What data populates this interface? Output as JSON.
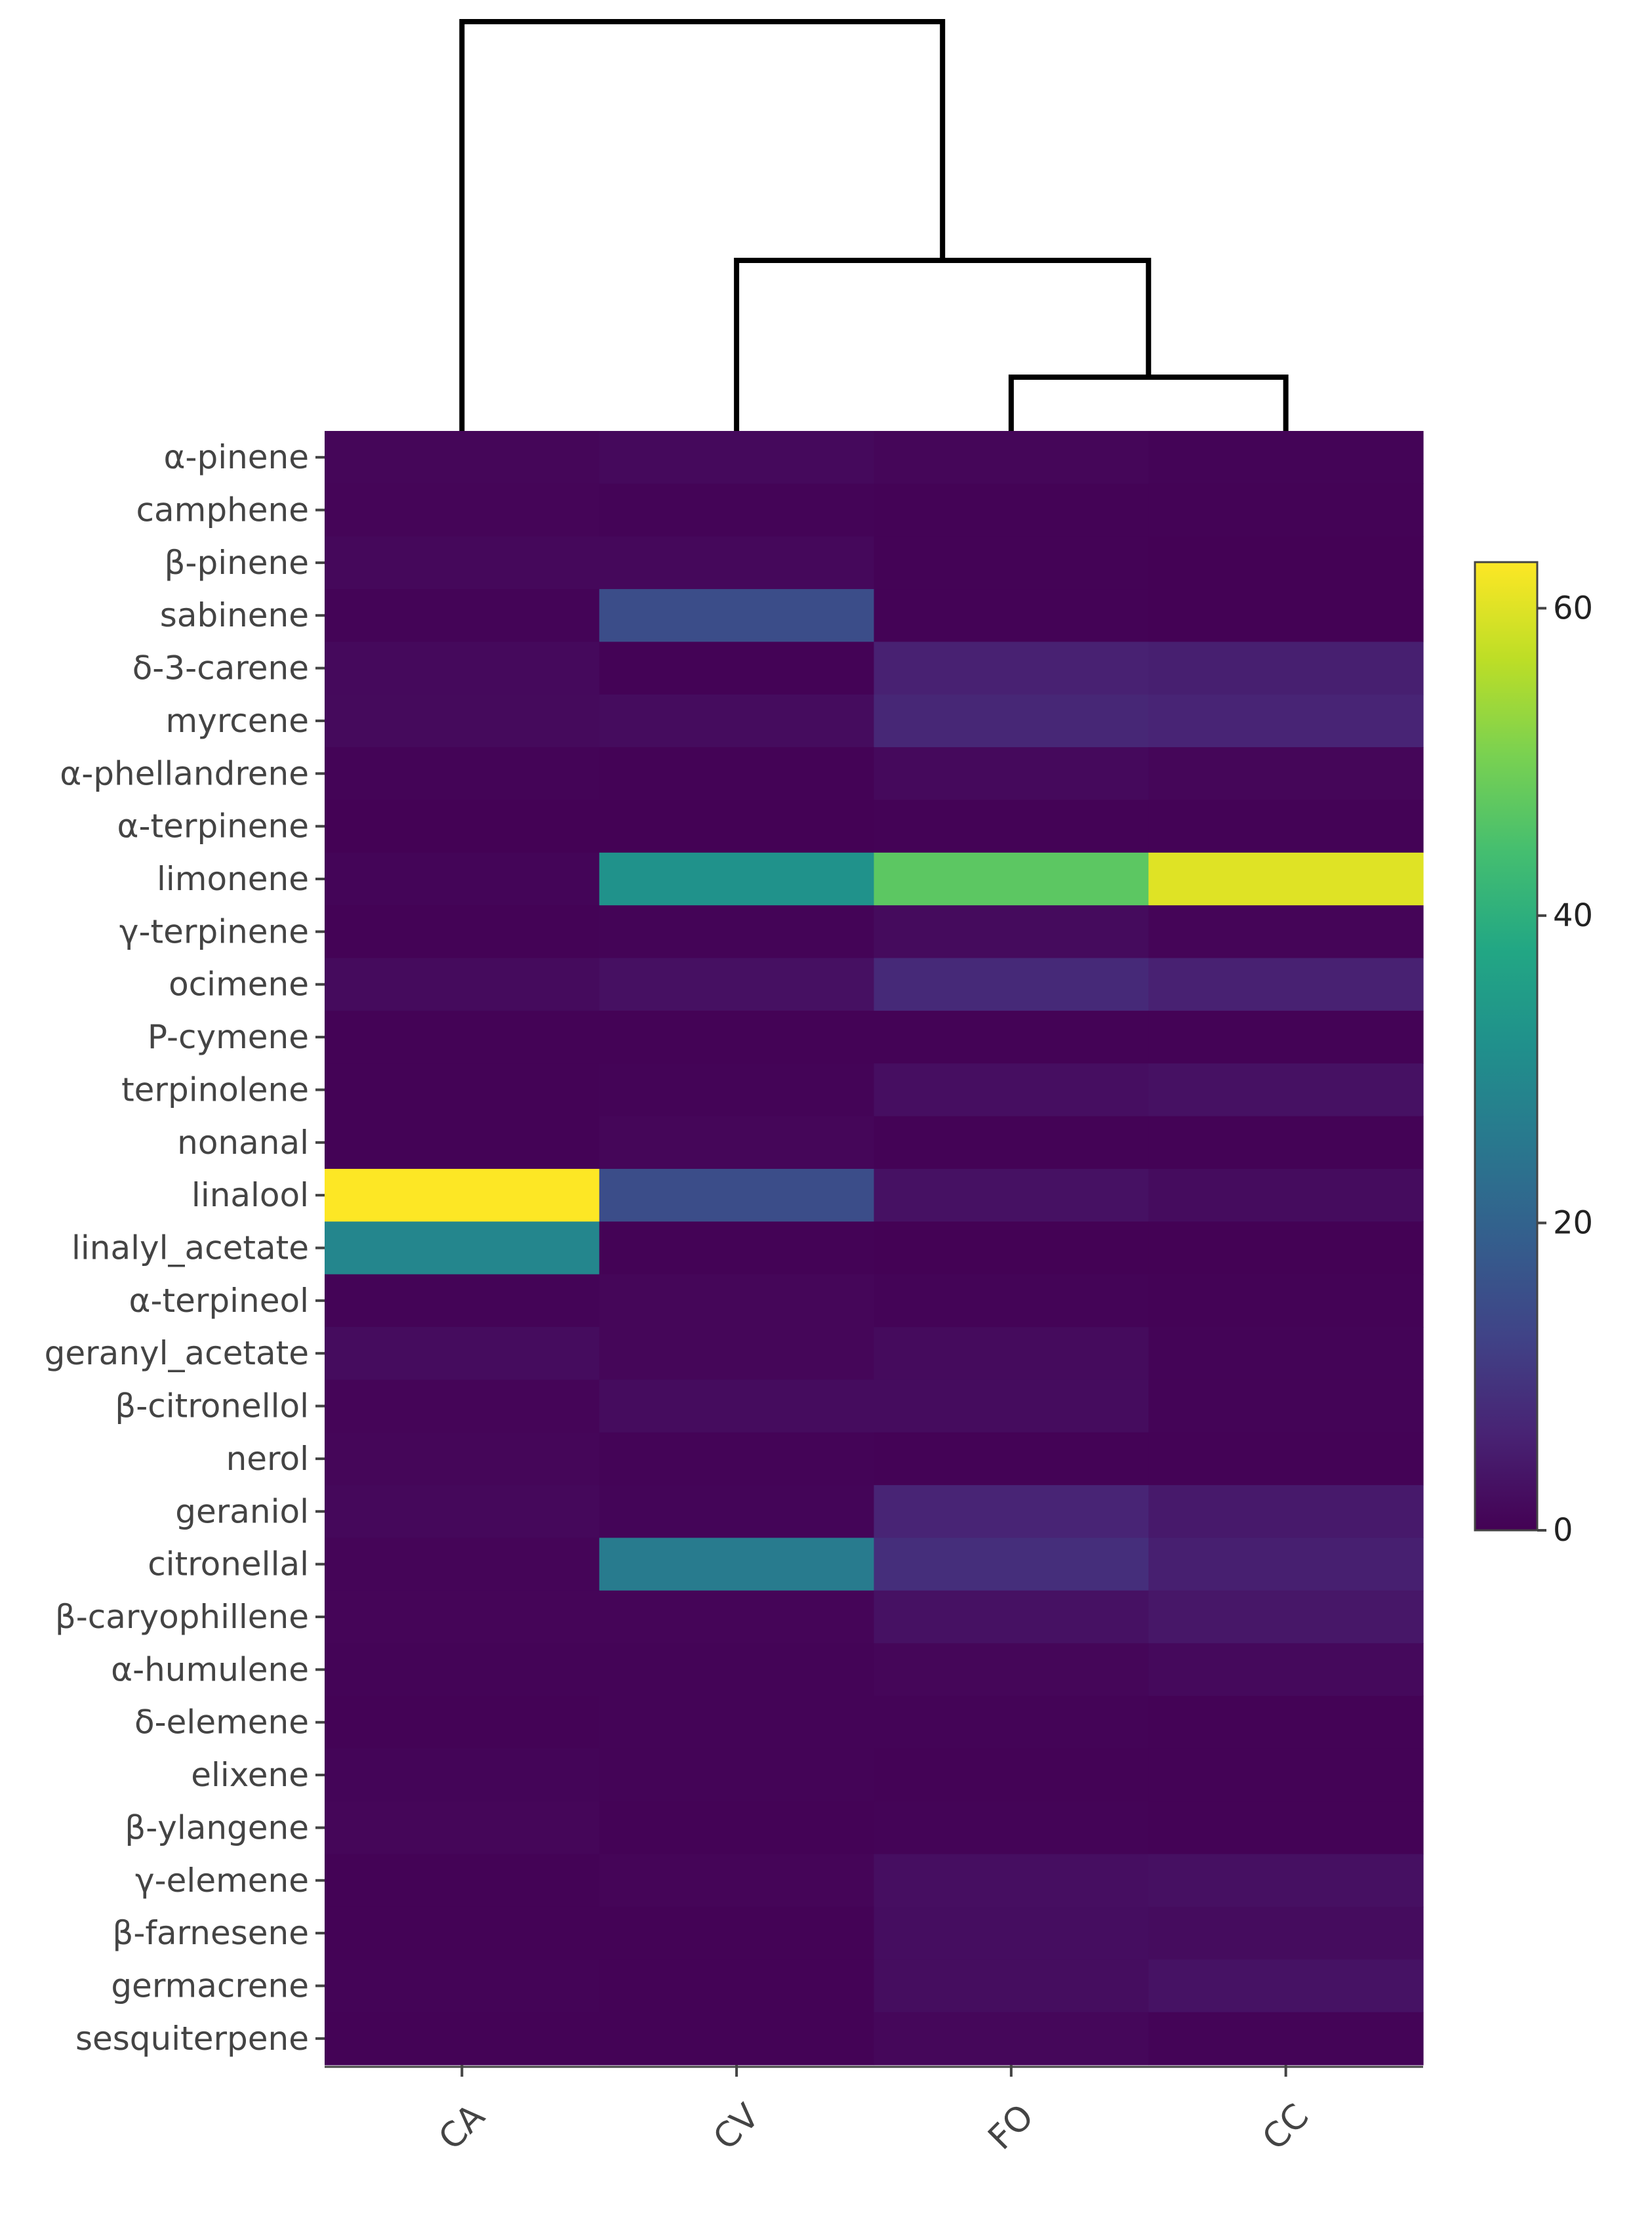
{
  "chart_data": {
    "type": "heatmap",
    "title": "",
    "xlabel": "",
    "ylabel": "",
    "columns": [
      "CA",
      "CV",
      "FO",
      "CC"
    ],
    "rows": [
      "α-pinene",
      "camphene",
      "β-pinene",
      "sabinene",
      "δ-3-carene",
      "myrcene",
      "α-phellandrene",
      "α-terpinene",
      "limonene",
      "γ-terpinene",
      "ocimene",
      "P-cymene",
      "terpinolene",
      "nonanal",
      "linalool",
      "linalyl_acetate",
      "α-terpineol",
      "geranyl_acetate",
      "β-citronellol",
      "nerol",
      "geraniol",
      "citronellal",
      "β-caryophillene",
      "α-humulene",
      "δ-elemene",
      "elixene",
      "β-ylangene",
      "γ-elemene",
      "β-farnesene",
      "germacrene",
      "sesquiterpene"
    ],
    "values": [
      [
        1.0,
        1.5,
        1.0,
        0.6
      ],
      [
        0.8,
        0.6,
        0.3,
        0.3
      ],
      [
        1.3,
        1.3,
        0.3,
        0.2
      ],
      [
        0.6,
        15.0,
        0.3,
        0.2
      ],
      [
        1.5,
        0.3,
        6.0,
        5.5
      ],
      [
        1.6,
        2.0,
        7.0,
        6.5
      ],
      [
        0.5,
        0.4,
        1.5,
        1.0
      ],
      [
        0.2,
        0.2,
        0.4,
        0.3
      ],
      [
        0.7,
        32.0,
        47.0,
        60.0
      ],
      [
        0.4,
        0.6,
        1.8,
        0.8
      ],
      [
        1.8,
        2.8,
        7.5,
        6.0
      ],
      [
        0.3,
        0.4,
        0.3,
        0.3
      ],
      [
        0.4,
        0.6,
        2.5,
        3.0
      ],
      [
        0.3,
        1.0,
        0.4,
        0.4
      ],
      [
        63.0,
        15.0,
        3.0,
        2.0
      ],
      [
        29.0,
        0.3,
        0.2,
        0.2
      ],
      [
        0.5,
        1.0,
        0.5,
        0.3
      ],
      [
        2.0,
        1.0,
        1.8,
        0.6
      ],
      [
        0.8,
        2.0,
        2.0,
        0.5
      ],
      [
        1.0,
        0.6,
        0.3,
        0.3
      ],
      [
        1.3,
        0.7,
        6.5,
        4.5
      ],
      [
        0.8,
        26.0,
        8.5,
        5.5
      ],
      [
        0.8,
        0.8,
        3.0,
        4.0
      ],
      [
        0.5,
        0.6,
        0.9,
        1.5
      ],
      [
        0.3,
        0.5,
        0.5,
        0.3
      ],
      [
        0.7,
        0.6,
        0.4,
        0.3
      ],
      [
        0.9,
        0.4,
        0.5,
        0.3
      ],
      [
        0.3,
        0.8,
        2.5,
        2.8
      ],
      [
        0.4,
        0.3,
        2.3,
        2.0
      ],
      [
        0.5,
        0.3,
        2.2,
        3.2
      ],
      [
        0.3,
        0.3,
        1.2,
        0.6
      ]
    ],
    "colorscale": "viridis",
    "zrange": [
      0,
      63
    ],
    "colorbar": {
      "ticks": [
        0,
        20,
        40,
        60
      ],
      "placement": "right"
    },
    "dendrogram": {
      "placement": "top",
      "linkage": [
        {
          "left": "FO",
          "right": "CC"
        },
        {
          "left": "CV",
          "right": "FO+CC"
        },
        {
          "left": "CA",
          "right": "CV+FO+CC"
        }
      ]
    }
  }
}
